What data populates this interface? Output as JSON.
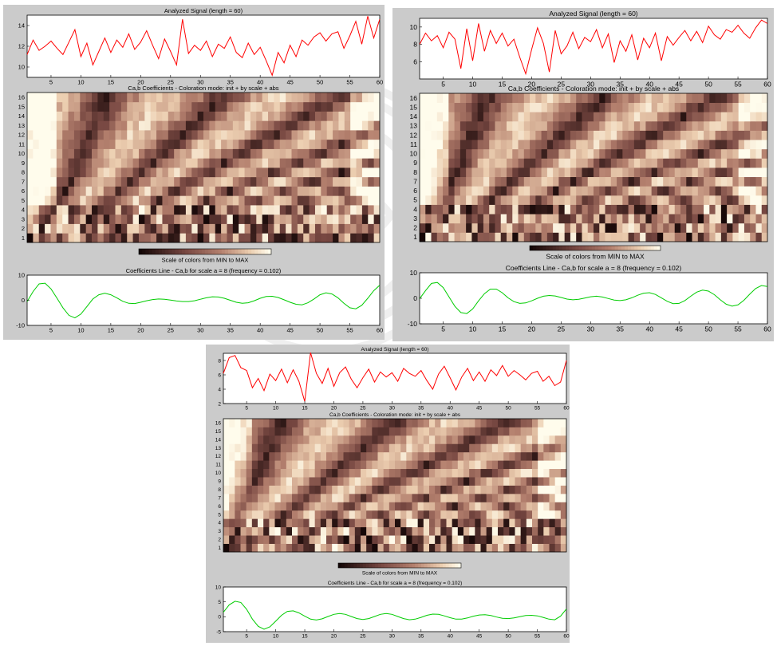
{
  "panels": [
    {
      "id": "top-left",
      "signal_title": "Analyzed Signal  (length = 60)",
      "coef_title": "Ca,b Coefficients - Coloration mode: init + by scale + abs",
      "colorbar_label": "Scale of colors from MIN to MAX",
      "line_title": "Coefficients Line - Ca,b for scale a = 8  (frequency =  0.102)",
      "signal_yticks": [
        "10",
        "12",
        "14"
      ],
      "signal_ylim": [
        9,
        15
      ],
      "line_yticks": [
        "-10",
        "0",
        "10"
      ],
      "line_ylim": [
        -10,
        10
      ],
      "xticks": [
        "5",
        "10",
        "15",
        "20",
        "25",
        "30",
        "35",
        "40",
        "45",
        "50",
        "55",
        "60"
      ],
      "scale_ticks": [
        "1",
        "2",
        "3",
        "4",
        "5",
        "6",
        "7",
        "8",
        "9",
        "10",
        "11",
        "12",
        "13",
        "14",
        "15",
        "16"
      ]
    },
    {
      "id": "top-right",
      "signal_title": "Analyzed Signal  (length = 60)",
      "coef_title": "Ca,b Coefficients - Coloration mode: init + by scale + abs",
      "colorbar_label": "Scale of colors from MIN to MAX",
      "line_title": "Coefficients Line - Ca,b for scale a = 8  (frequency =   0.102)",
      "signal_yticks": [
        "6",
        "8",
        "10"
      ],
      "signal_ylim": [
        4,
        11
      ],
      "line_yticks": [
        "-10",
        "0",
        "10"
      ],
      "line_ylim": [
        -10,
        10
      ],
      "xticks": [
        "5",
        "10",
        "15",
        "20",
        "25",
        "30",
        "35",
        "40",
        "45",
        "50",
        "55",
        "60"
      ],
      "scale_ticks": [
        "1",
        "2",
        "3",
        "4",
        "5",
        "6",
        "7",
        "8",
        "9",
        "10",
        "11",
        "12",
        "13",
        "14",
        "15",
        "16"
      ]
    },
    {
      "id": "bottom",
      "signal_title": "Analyzed Signal  (length = 60)",
      "coef_title": "Ca,b Coefficients - Coloration mode: init + by scale + abs",
      "colorbar_label": "Scale of colors from MIN to MAX",
      "line_title": "Coefficients Line - Ca,b for scale a = 8  (frequency =  0.102)",
      "signal_yticks": [
        "2",
        "4",
        "6",
        "8"
      ],
      "signal_ylim": [
        2,
        9
      ],
      "line_yticks": [
        "-5",
        "0",
        "5",
        "10"
      ],
      "line_ylim": [
        -5,
        10
      ],
      "xticks": [
        "5",
        "10",
        "15",
        "20",
        "25",
        "30",
        "35",
        "40",
        "45",
        "50",
        "55",
        "60"
      ],
      "scale_ticks": [
        "1",
        "2",
        "3",
        "4",
        "5",
        "6",
        "7",
        "8",
        "9",
        "10",
        "11",
        "12",
        "13",
        "14",
        "15",
        "16"
      ]
    }
  ],
  "colors": {
    "panel_bg": "#cbcbcb",
    "plot_bg": "#ffffff",
    "signal_line": "#ff0000",
    "coef_line": "#00cc00",
    "colormap_low": "#1e0a08",
    "colormap_mid": "#9b6659",
    "colormap_high": "#fffbe8"
  },
  "chart_data": [
    {
      "type": "line",
      "title": "Analyzed Signal  (length = 60)",
      "x": [
        1,
        2,
        3,
        4,
        5,
        6,
        7,
        8,
        9,
        10,
        11,
        12,
        13,
        14,
        15,
        16,
        17,
        18,
        19,
        20,
        21,
        22,
        23,
        24,
        25,
        26,
        27,
        28,
        29,
        30,
        31,
        32,
        33,
        34,
        35,
        36,
        37,
        38,
        39,
        40,
        41,
        42,
        43,
        44,
        45,
        46,
        47,
        48,
        49,
        50,
        51,
        52,
        53,
        54,
        55,
        56,
        57,
        58,
        59,
        60
      ],
      "series": [
        {
          "values": [
            11.2,
            12.6,
            11.6,
            12.0,
            12.5,
            11.8,
            11.2,
            12.4,
            13.6,
            11.0,
            12.3,
            10.2,
            11.5,
            12.8,
            11.4,
            12.6,
            11.9,
            13.2,
            11.7,
            12.4,
            13.5,
            12.1,
            10.8,
            12.7,
            11.5,
            10.2,
            14.6,
            11.3,
            12.1,
            11.6,
            12.5,
            11.0,
            12.2,
            11.8,
            12.9,
            11.4,
            10.9,
            12.3,
            11.2,
            11.9,
            10.6,
            9.2,
            11.4,
            10.4,
            12.1,
            11.0,
            12.6,
            12.1,
            12.9,
            13.3,
            12.5,
            13.2,
            13.4,
            11.8,
            13.0,
            14.4,
            12.2,
            14.9,
            12.8,
            14.6
          ]
        }
      ],
      "ylim": [
        9,
        15
      ]
    },
    {
      "type": "heatmap",
      "title": "Ca,b Coefficients - Coloration mode: init + by scale + abs",
      "x_range": [
        1,
        60
      ],
      "scales": [
        1,
        16
      ]
    },
    {
      "type": "line",
      "title": "Coefficients Line - Ca,b for scale a = 8  (frequency =  0.102)",
      "x": [
        1,
        2,
        3,
        4,
        5,
        6,
        7,
        8,
        9,
        10,
        11,
        12,
        13,
        14,
        15,
        16,
        17,
        18,
        19,
        20,
        21,
        22,
        23,
        24,
        25,
        26,
        27,
        28,
        29,
        30,
        31,
        32,
        33,
        34,
        35,
        36,
        37,
        38,
        39,
        40,
        41,
        42,
        43,
        44,
        45,
        46,
        47,
        48,
        49,
        50,
        51,
        52,
        53,
        54,
        55,
        56,
        57,
        58,
        59,
        60
      ],
      "series": [
        {
          "values": [
            -0.5,
            3.5,
            6.5,
            6.8,
            4.5,
            0.8,
            -3.0,
            -6.0,
            -7.0,
            -5.5,
            -2.5,
            0.5,
            2.2,
            2.8,
            2.2,
            1.0,
            -0.4,
            -1.2,
            -1.3,
            -0.8,
            -0.2,
            0.3,
            0.5,
            0.4,
            0.1,
            -0.3,
            -0.5,
            -0.5,
            -0.2,
            0.4,
            1.0,
            1.4,
            1.3,
            0.8,
            0.0,
            -0.8,
            -1.2,
            -1.0,
            -0.2,
            0.8,
            1.5,
            1.6,
            1.1,
            0.2,
            -0.8,
            -1.6,
            -1.8,
            -1.0,
            0.5,
            2.2,
            3.0,
            2.5,
            1.0,
            -1.2,
            -3.0,
            -3.4,
            -2.0,
            0.8,
            3.8,
            6.0
          ]
        }
      ],
      "ylim": [
        -10,
        10
      ]
    },
    {
      "type": "line",
      "title": "Analyzed Signal  (length = 60)",
      "x": [
        1,
        2,
        3,
        4,
        5,
        6,
        7,
        8,
        9,
        10,
        11,
        12,
        13,
        14,
        15,
        16,
        17,
        18,
        19,
        20,
        21,
        22,
        23,
        24,
        25,
        26,
        27,
        28,
        29,
        30,
        31,
        32,
        33,
        34,
        35,
        36,
        37,
        38,
        39,
        40,
        41,
        42,
        43,
        44,
        45,
        46,
        47,
        48,
        49,
        50,
        51,
        52,
        53,
        54,
        55,
        56,
        57,
        58,
        59,
        60
      ],
      "series": [
        {
          "values": [
            8.0,
            9.3,
            8.4,
            9.0,
            7.6,
            9.4,
            8.6,
            5.2,
            9.8,
            6.1,
            10.4,
            7.2,
            9.6,
            8.1,
            9.3,
            7.8,
            8.6,
            6.5,
            4.6,
            7.4,
            9.9,
            8.1,
            4.8,
            9.6,
            6.9,
            7.8,
            9.4,
            7.5,
            8.8,
            8.3,
            9.7,
            7.6,
            9.2,
            5.9,
            8.4,
            7.2,
            9.1,
            6.2,
            8.7,
            7.6,
            9.3,
            6.1,
            8.9,
            7.9,
            8.8,
            9.6,
            8.4,
            9.5,
            8.2,
            10.1,
            9.1,
            8.6,
            9.7,
            9.4,
            10.2,
            9.3,
            8.7,
            9.9,
            10.8,
            10.4
          ]
        }
      ],
      "ylim": [
        4,
        11
      ]
    },
    {
      "type": "heatmap",
      "title": "Ca,b Coefficients - Coloration mode: init + by scale + abs",
      "x_range": [
        1,
        60
      ],
      "scales": [
        1,
        16
      ]
    },
    {
      "type": "line",
      "title": "Coefficients Line - Ca,b for scale a = 8  (frequency =   0.102)",
      "x": [
        1,
        2,
        3,
        4,
        5,
        6,
        7,
        8,
        9,
        10,
        11,
        12,
        13,
        14,
        15,
        16,
        17,
        18,
        19,
        20,
        21,
        22,
        23,
        24,
        25,
        26,
        27,
        28,
        29,
        30,
        31,
        32,
        33,
        34,
        35,
        36,
        37,
        38,
        39,
        40,
        41,
        42,
        43,
        44,
        45,
        46,
        47,
        48,
        49,
        50,
        51,
        52,
        53,
        54,
        55,
        56,
        57,
        58,
        59,
        60
      ],
      "series": [
        {
          "values": [
            -0.2,
            3.0,
            5.8,
            6.2,
            4.2,
            0.5,
            -3.2,
            -5.6,
            -6.0,
            -4.2,
            -1.0,
            1.8,
            3.6,
            3.6,
            2.2,
            0.2,
            -1.3,
            -2.0,
            -1.8,
            -1.0,
            0.0,
            0.8,
            1.1,
            0.9,
            0.3,
            -0.3,
            -0.6,
            -0.4,
            0.1,
            0.6,
            0.8,
            0.5,
            -0.1,
            -0.7,
            -0.9,
            -0.6,
            0.2,
            1.2,
            2.0,
            2.2,
            1.5,
            0.2,
            -1.2,
            -2.1,
            -2.0,
            -0.9,
            0.8,
            2.4,
            3.2,
            2.8,
            1.4,
            -0.6,
            -2.3,
            -3.1,
            -2.6,
            -0.8,
            1.6,
            3.8,
            5.0,
            4.6
          ]
        }
      ],
      "ylim": [
        -10,
        10
      ]
    },
    {
      "type": "line",
      "title": "Analyzed Signal  (length = 60)",
      "x": [
        1,
        2,
        3,
        4,
        5,
        6,
        7,
        8,
        9,
        10,
        11,
        12,
        13,
        14,
        15,
        16,
        17,
        18,
        19,
        20,
        21,
        22,
        23,
        24,
        25,
        26,
        27,
        28,
        29,
        30,
        31,
        32,
        33,
        34,
        35,
        36,
        37,
        38,
        39,
        40,
        41,
        42,
        43,
        44,
        45,
        46,
        47,
        48,
        49,
        50,
        51,
        52,
        53,
        54,
        55,
        56,
        57,
        58,
        59,
        60
      ],
      "series": [
        {
          "values": [
            6.2,
            8.4,
            8.7,
            7.0,
            6.6,
            4.2,
            5.5,
            3.8,
            6.1,
            5.2,
            6.8,
            4.9,
            6.7,
            5.1,
            2.3,
            9.1,
            6.2,
            4.8,
            6.9,
            4.4,
            6.3,
            7.1,
            5.4,
            4.2,
            5.6,
            6.8,
            5.0,
            6.4,
            5.7,
            6.3,
            5.1,
            6.9,
            6.2,
            5.8,
            6.6,
            5.2,
            4.0,
            6.1,
            7.2,
            5.6,
            3.9,
            5.7,
            6.9,
            5.2,
            6.4,
            5.1,
            6.7,
            5.9,
            7.3,
            5.8,
            6.6,
            6.0,
            5.3,
            6.2,
            6.5,
            5.1,
            5.8,
            4.5,
            5.0,
            8.0
          ]
        }
      ],
      "ylim": [
        2,
        9
      ]
    },
    {
      "type": "heatmap",
      "title": "Ca,b Coefficients - Coloration mode: init + by scale + abs",
      "x_range": [
        1,
        60
      ],
      "scales": [
        1,
        16
      ]
    },
    {
      "type": "line",
      "title": "Coefficients Line - Ca,b for scale a = 8  (frequency =  0.102)",
      "x": [
        1,
        2,
        3,
        4,
        5,
        6,
        7,
        8,
        9,
        10,
        11,
        12,
        13,
        14,
        15,
        16,
        17,
        18,
        19,
        20,
        21,
        22,
        23,
        24,
        25,
        26,
        27,
        28,
        29,
        30,
        31,
        32,
        33,
        34,
        35,
        36,
        37,
        38,
        39,
        40,
        41,
        42,
        43,
        44,
        45,
        46,
        47,
        48,
        49,
        50,
        51,
        52,
        53,
        54,
        55,
        56,
        57,
        58,
        59,
        60
      ],
      "series": [
        {
          "values": [
            1.5,
            4.0,
            5.2,
            4.8,
            2.5,
            -0.8,
            -3.2,
            -4.2,
            -3.4,
            -1.5,
            0.5,
            1.8,
            2.0,
            1.3,
            0.2,
            -0.8,
            -1.1,
            -0.7,
            0.1,
            0.8,
            1.1,
            0.8,
            0.1,
            -0.6,
            -0.9,
            -0.6,
            0.1,
            0.8,
            1.1,
            0.8,
            0.1,
            -0.6,
            -1.0,
            -0.8,
            -0.2,
            0.5,
            0.9,
            0.8,
            0.3,
            -0.3,
            -0.8,
            -0.8,
            -0.4,
            0.2,
            0.6,
            0.7,
            0.4,
            -0.1,
            -0.5,
            -0.6,
            -0.4,
            0.0,
            0.4,
            0.5,
            0.3,
            -0.2,
            -0.8,
            -1.0,
            0.2,
            2.6
          ]
        }
      ],
      "ylim": [
        -5,
        10
      ]
    }
  ]
}
